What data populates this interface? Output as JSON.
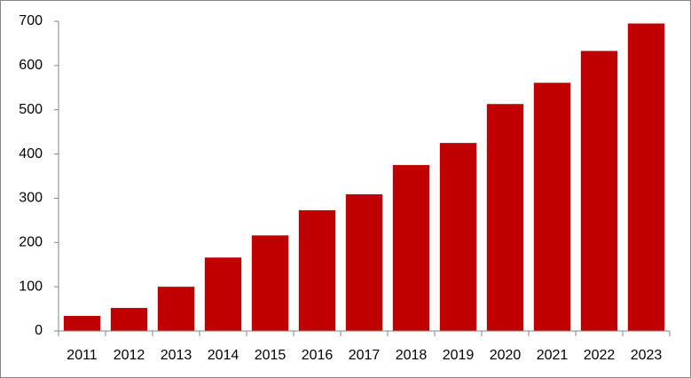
{
  "chart_data": {
    "type": "bar",
    "categories": [
      "2011",
      "2012",
      "2013",
      "2014",
      "2015",
      "2016",
      "2017",
      "2018",
      "2019",
      "2020",
      "2021",
      "2022",
      "2023"
    ],
    "values": [
      34,
      52,
      100,
      166,
      216,
      273,
      309,
      375,
      425,
      513,
      561,
      633,
      695
    ],
    "color": "#c00000",
    "ylim": [
      0,
      700
    ],
    "yticks": [
      0,
      100,
      200,
      300,
      400,
      500,
      600,
      700
    ],
    "grid": false
  }
}
